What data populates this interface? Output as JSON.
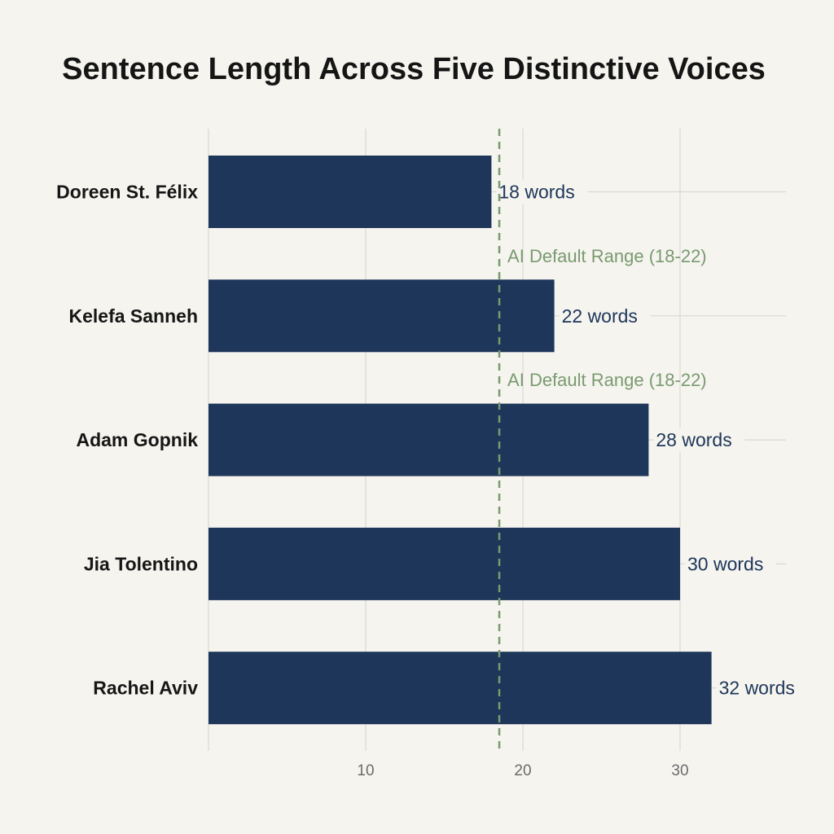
{
  "chart_data": {
    "type": "bar",
    "orientation": "horizontal",
    "title": "Sentence Length Across Five Distinctive Voices",
    "categories": [
      "Doreen St. Félix",
      "Kelefa Sanneh",
      "Adam Gopnik",
      "Jia Tolentino",
      "Rachel Aviv"
    ],
    "values": [
      18,
      22,
      28,
      30,
      32
    ],
    "data_labels": [
      "18 words",
      "22 words",
      "28 words",
      "30 words",
      "32 words"
    ],
    "xlim": [
      0,
      36
    ],
    "xticks": [
      10,
      20,
      30
    ],
    "grid": true,
    "reference_line": {
      "value": 18.5,
      "style": "dashed",
      "labels": [
        "AI Default Range (18-22)",
        "AI Default Range (18-22)"
      ]
    },
    "colors": {
      "bar": "#1e3659",
      "data_label": "#1e3659",
      "reference": "#7a9a70",
      "grid": "#d9d9d4",
      "background": "#f5f4ef"
    }
  }
}
